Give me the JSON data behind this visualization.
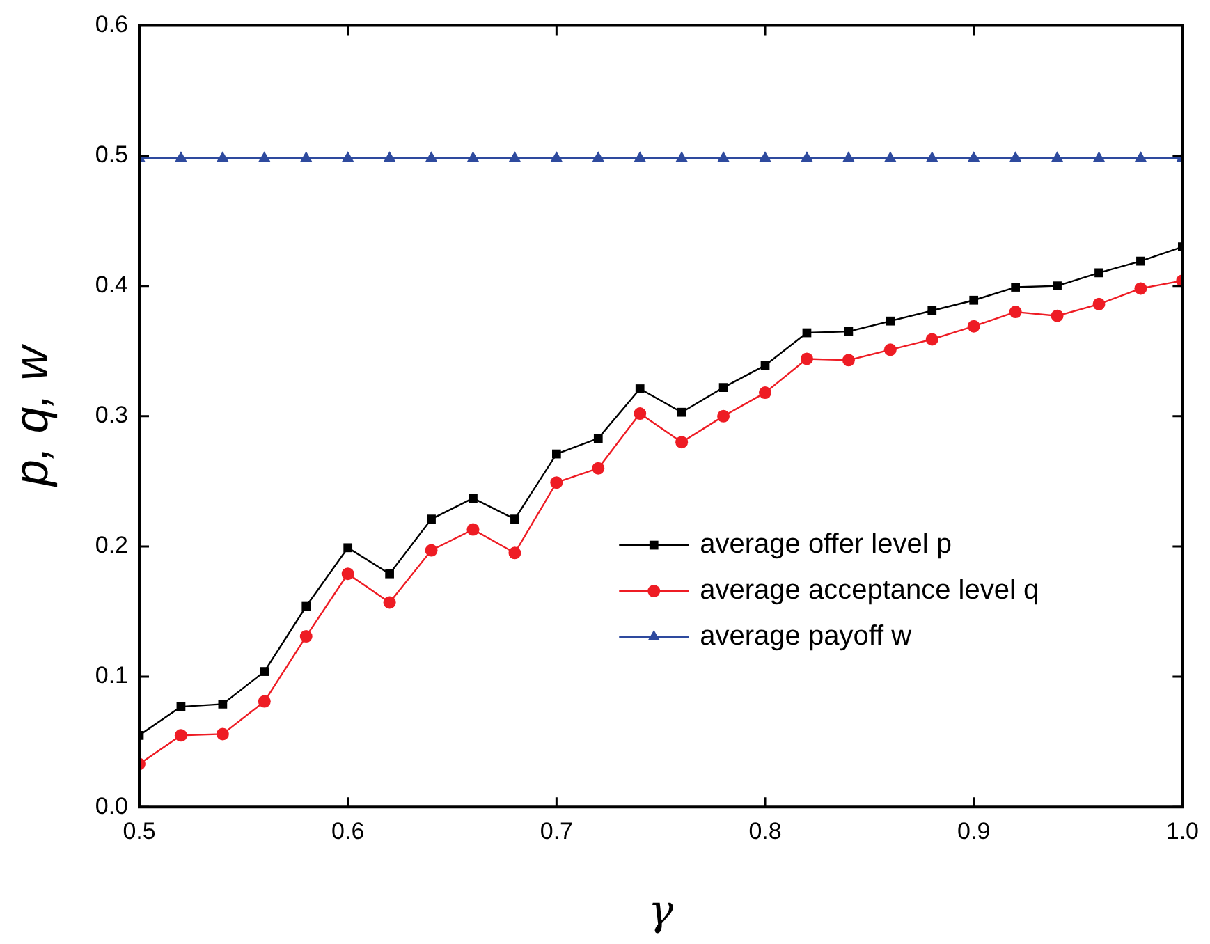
{
  "chart_data": {
    "type": "line",
    "xlabel": "γ",
    "ylabel": "p, q, w",
    "x": [
      0.5,
      0.52,
      0.54,
      0.56,
      0.58,
      0.6,
      0.62,
      0.64,
      0.66,
      0.68,
      0.7,
      0.72,
      0.74,
      0.76,
      0.78,
      0.8,
      0.82,
      0.84,
      0.86,
      0.88,
      0.9,
      0.92,
      0.94,
      0.96,
      0.98,
      1.0
    ],
    "series": [
      {
        "name": "average offer level p",
        "color": "#000000",
        "marker": "square",
        "values": [
          0.055,
          0.077,
          0.079,
          0.104,
          0.154,
          0.199,
          0.179,
          0.221,
          0.237,
          0.221,
          0.271,
          0.283,
          0.321,
          0.303,
          0.322,
          0.339,
          0.364,
          0.365,
          0.373,
          0.381,
          0.389,
          0.399,
          0.4,
          0.41,
          0.419,
          0.43
        ]
      },
      {
        "name": "average acceptance level q",
        "color": "#ee1c24",
        "marker": "circle",
        "values": [
          0.033,
          0.055,
          0.056,
          0.081,
          0.131,
          0.179,
          0.157,
          0.197,
          0.213,
          0.195,
          0.249,
          0.26,
          0.302,
          0.28,
          0.3,
          0.318,
          0.344,
          0.343,
          0.351,
          0.359,
          0.369,
          0.38,
          0.377,
          0.386,
          0.398,
          0.404
        ]
      },
      {
        "name": "average payoff w",
        "color": "#2e4a9e",
        "marker": "triangle",
        "values": [
          0.498,
          0.498,
          0.498,
          0.498,
          0.498,
          0.498,
          0.498,
          0.498,
          0.498,
          0.498,
          0.498,
          0.498,
          0.498,
          0.498,
          0.498,
          0.498,
          0.498,
          0.498,
          0.498,
          0.498,
          0.498,
          0.498,
          0.498,
          0.498,
          0.498,
          0.498
        ]
      }
    ],
    "xlim": [
      0.5,
      1.0
    ],
    "xticks": [
      {
        "value": 0.5,
        "label": "0.5"
      },
      {
        "value": 0.6,
        "label": "0.6"
      },
      {
        "value": 0.7,
        "label": "0.7"
      },
      {
        "value": 0.8,
        "label": "0.8"
      },
      {
        "value": 0.9,
        "label": "0.9"
      },
      {
        "value": 1.0,
        "label": "1.0"
      }
    ],
    "ylim": [
      0,
      0.6
    ],
    "yticks": [
      {
        "value": 0,
        "label": "0.0"
      },
      {
        "value": 0.1,
        "label": "0.1"
      },
      {
        "value": 0.2,
        "label": "0.2"
      },
      {
        "value": 0.3,
        "label": "0.3"
      },
      {
        "value": 0.4,
        "label": "0.4"
      },
      {
        "value": 0.5,
        "label": "0.5"
      },
      {
        "value": 0.6,
        "label": "0.6"
      }
    ],
    "grid": false,
    "legend": "right",
    "line_style": "solid"
  }
}
